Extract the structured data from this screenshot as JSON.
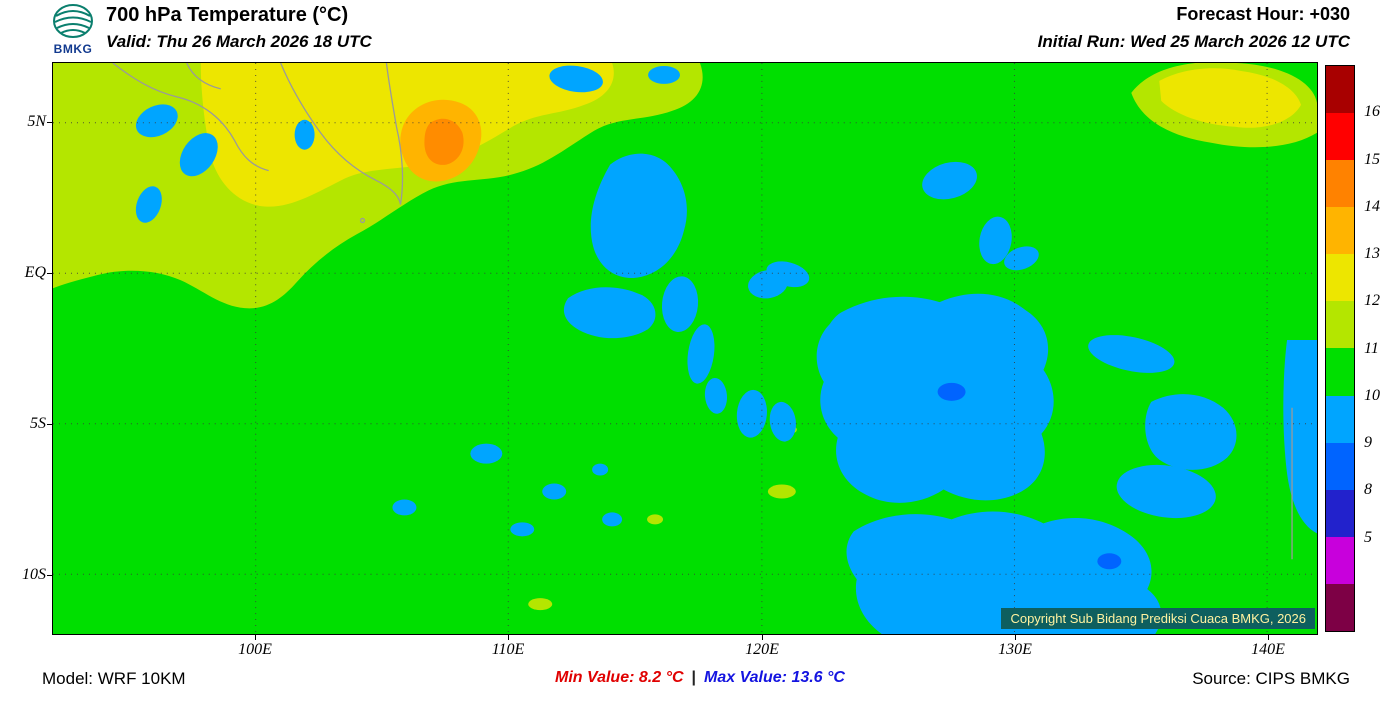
{
  "header": {
    "title": "700 hPa Temperature (°C)",
    "valid": "Valid: Thu 26 March 2026 18 UTC",
    "forecast_hour": "Forecast Hour: +030",
    "initial_run": "Initial Run: Wed 25 March 2026 12 UTC",
    "logo_text": "BMKG"
  },
  "axes": {
    "lat": [
      "5N",
      "EQ",
      "5S",
      "10S"
    ],
    "lon": [
      "100E",
      "110E",
      "120E",
      "130E",
      "140E"
    ]
  },
  "map": {
    "copyright": "Copyright Sub Bidang Prediksi Cuaca BMKG, 2026"
  },
  "colorbar": {
    "labels": [
      "16",
      "15",
      "14",
      "13",
      "12",
      "11",
      "10",
      "9",
      "8",
      "5"
    ],
    "colors": [
      "#A80000",
      "#FF0000",
      "#FF8200",
      "#FFB400",
      "#EDE600",
      "#B4E600",
      "#00DF00",
      "#00A5FF",
      "#0064FF",
      "#2222CC",
      "#C800DC",
      "#7D0045"
    ]
  },
  "footer": {
    "model": "Model: WRF 10KM",
    "min_text": "Min Value: 8.2 °C",
    "separator": "|",
    "max_text": "Max Value: 13.6 °C",
    "source": "Source: CIPS BMKG"
  },
  "theme": {
    "green": "#00DF00",
    "yellowgreen": "#B4E600",
    "yellow": "#EDE600",
    "orange": "#FFB400",
    "orange_deep": "#FF8C00",
    "blue": "#00A5FF",
    "blue_deep": "#0064FF",
    "grid": "#3A3A3A",
    "border_gray": "#9A9A9A",
    "copyright_bg": "#0E5F5F",
    "copyright_fg": "#FFF2A0",
    "min_color": "#E00000",
    "max_color": "#1414E0"
  }
}
